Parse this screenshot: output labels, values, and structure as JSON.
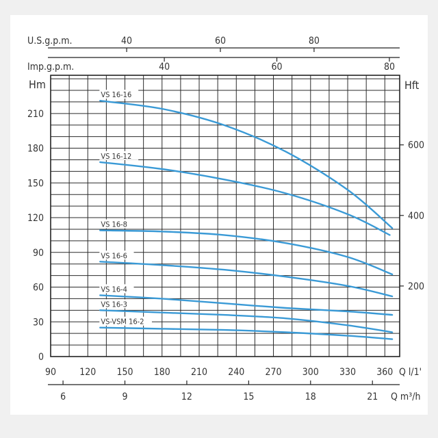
{
  "chart_data": {
    "type": "line",
    "xlabel": "Q l/1'",
    "xlabel2": "Q m³/h",
    "ylabel": "Hm",
    "ylabel2": "Hft",
    "top_axis1_label": "U.S.g.p.m.",
    "top_axis2_label": "Imp.g.p.m.",
    "xlim": [
      90,
      372
    ],
    "ylim": [
      0,
      243
    ],
    "x_ticks": [
      90,
      120,
      150,
      180,
      210,
      240,
      270,
      300,
      330,
      360
    ],
    "y_ticks": [
      0,
      30,
      60,
      90,
      120,
      150,
      180,
      210
    ],
    "x_ticks_m3h": [
      6,
      9,
      12,
      15,
      18,
      21
    ],
    "y_ticks_ft": [
      200,
      400,
      600
    ],
    "top_ticks_usgpm": [
      40,
      60,
      80
    ],
    "top_ticks_impgpm": [
      40,
      60,
      80
    ],
    "grid": true,
    "series": [
      {
        "name": "VS 16-16",
        "x": [
          130,
          180,
          230,
          280,
          330,
          366
        ],
        "y": [
          221,
          214,
          200,
          177,
          144,
          111
        ]
      },
      {
        "name": "VS 16-12",
        "x": [
          130,
          180,
          230,
          280,
          330,
          364
        ],
        "y": [
          168,
          162,
          153,
          141,
          123,
          105
        ]
      },
      {
        "name": "VS 16-8",
        "x": [
          130,
          180,
          230,
          280,
          330,
          366
        ],
        "y": [
          109,
          108,
          105,
          98,
          86,
          71
        ]
      },
      {
        "name": "VS 16-6",
        "x": [
          130,
          180,
          230,
          280,
          330,
          366
        ],
        "y": [
          82,
          79,
          75,
          69,
          61,
          52
        ]
      },
      {
        "name": "VS 16-4",
        "x": [
          130,
          180,
          230,
          280,
          330,
          366
        ],
        "y": [
          53,
          50,
          46,
          42,
          39,
          36
        ]
      },
      {
        "name": "VS 16-3",
        "x": [
          130,
          180,
          230,
          280,
          330,
          366
        ],
        "y": [
          40,
          38,
          36,
          33,
          27,
          21
        ]
      },
      {
        "name": "VS-VSM 16-2",
        "x": [
          130,
          180,
          230,
          280,
          330,
          366
        ],
        "y": [
          25,
          24,
          23,
          21,
          18,
          15
        ]
      }
    ],
    "series_color": "#3a9ad6"
  }
}
